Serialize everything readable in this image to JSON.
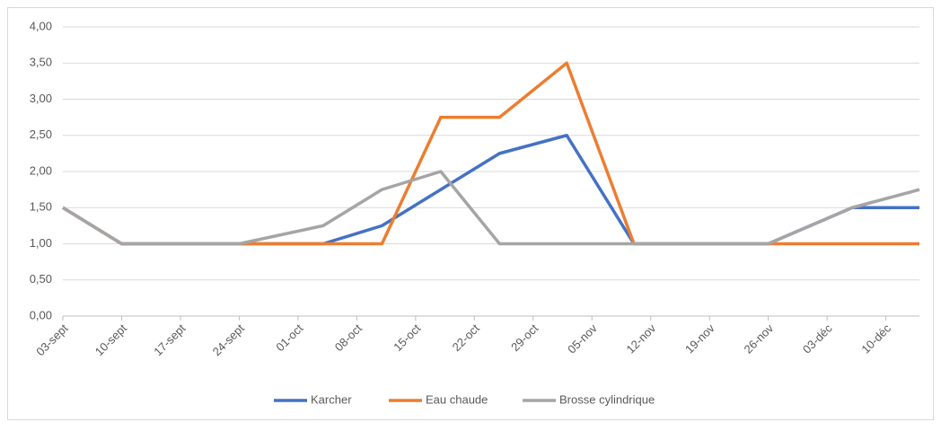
{
  "chart_data": {
    "type": "line",
    "x": [
      "09-03",
      "09-10",
      "09-17",
      "09-24",
      "10-04",
      "10-11",
      "10-18",
      "10-25",
      "11-02",
      "11-10",
      "11-17",
      "11-26",
      "12-06",
      "12-14"
    ],
    "series": [
      {
        "name": "Karcher",
        "color": "#4472c4",
        "values": [
          1.5,
          1,
          1,
          1,
          1,
          1.25,
          1.75,
          2.25,
          2.5,
          1,
          1,
          1,
          1.5,
          1.5
        ]
      },
      {
        "name": "Eau chaude",
        "color": "#ed7d31",
        "values": [
          1.5,
          1,
          1,
          1,
          1,
          1,
          2.75,
          2.75,
          3.5,
          1,
          1,
          1,
          1,
          1
        ]
      },
      {
        "name": "Brosse cylindrique",
        "color": "#a5a5a5",
        "values": [
          1.5,
          1,
          1,
          1,
          1.25,
          1.75,
          2,
          1,
          1,
          1,
          1,
          1,
          1.5,
          1.75
        ]
      }
    ],
    "xlim": [
      "09-03",
      "12-14"
    ],
    "xticks": [
      {
        "value": "09-03",
        "label": "03-sept"
      },
      {
        "value": "09-10",
        "label": "10-sept"
      },
      {
        "value": "09-17",
        "label": "17-sept"
      },
      {
        "value": "09-24",
        "label": "24-sept"
      },
      {
        "value": "10-01",
        "label": "01-oct"
      },
      {
        "value": "10-08",
        "label": "08-oct"
      },
      {
        "value": "10-15",
        "label": "15-oct"
      },
      {
        "value": "10-22",
        "label": "22-oct"
      },
      {
        "value": "10-29",
        "label": "29-oct"
      },
      {
        "value": "11-05",
        "label": "05-nov"
      },
      {
        "value": "11-12",
        "label": "12-nov"
      },
      {
        "value": "11-19",
        "label": "19-nov"
      },
      {
        "value": "11-26",
        "label": "26-nov"
      },
      {
        "value": "12-03",
        "label": "03-déc"
      },
      {
        "value": "12-10",
        "label": "10-déc"
      }
    ],
    "ylim": [
      0,
      4
    ],
    "yticks": [
      {
        "value": 0,
        "label": "0,00"
      },
      {
        "value": 0.5,
        "label": "0,50"
      },
      {
        "value": 1,
        "label": "1,00"
      },
      {
        "value": 1.5,
        "label": "1,50"
      },
      {
        "value": 2,
        "label": "2,00"
      },
      {
        "value": 2.5,
        "label": "2,50"
      },
      {
        "value": 3,
        "label": "3,00"
      },
      {
        "value": 3.5,
        "label": "3,50"
      },
      {
        "value": 4,
        "label": "4,00"
      }
    ],
    "grid": true,
    "legend": "bottom"
  }
}
